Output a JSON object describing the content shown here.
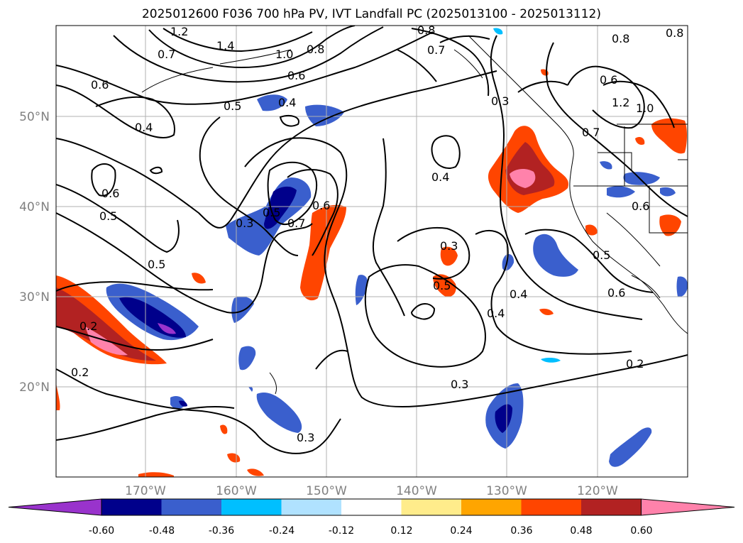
{
  "title": "2025012600 F036 700 hPa PV, IVT Landfall PC (2025013100 - 2025013112)",
  "latitude_labels": [
    "50°N",
    "40°N",
    "30°N",
    "20°N"
  ],
  "longitude_labels": [
    "170°W",
    "160°W",
    "150°W",
    "140°W",
    "130°W",
    "120°W"
  ],
  "colorbar": {
    "tick_labels": [
      "-0.60",
      "-0.48",
      "-0.36",
      "-0.24",
      "-0.12",
      "0.12",
      "0.24",
      "0.36",
      "0.48",
      "0.60"
    ],
    "colors": [
      "#9933cc",
      "#00008b",
      "#3a5fcd",
      "#00bfff",
      "#b0e2ff",
      "#ffffff",
      "#ffec8b",
      "#ffa500",
      "#ff4500",
      "#b22222",
      "#ff82ab"
    ]
  },
  "contour_labels": [
    "1.2",
    "0.7",
    "1.4",
    "1.0",
    "0.8",
    "0.6",
    "0.6",
    "0.5",
    "0.4",
    "0.4",
    "0.6",
    "0.5",
    "0.3",
    "0.5",
    "0.7",
    "0.6",
    "0.5",
    "0.2",
    "0.2",
    "0.8",
    "0.7",
    "0.3",
    "0.8",
    "1.2",
    "1.0",
    "0.7",
    "0.4",
    "0.6",
    "0.3",
    "0.5",
    "0.4",
    "0.4",
    "0.3",
    "0.2",
    "0.6",
    "0.5",
    "0.6",
    "0.3",
    "0.8"
  ]
}
